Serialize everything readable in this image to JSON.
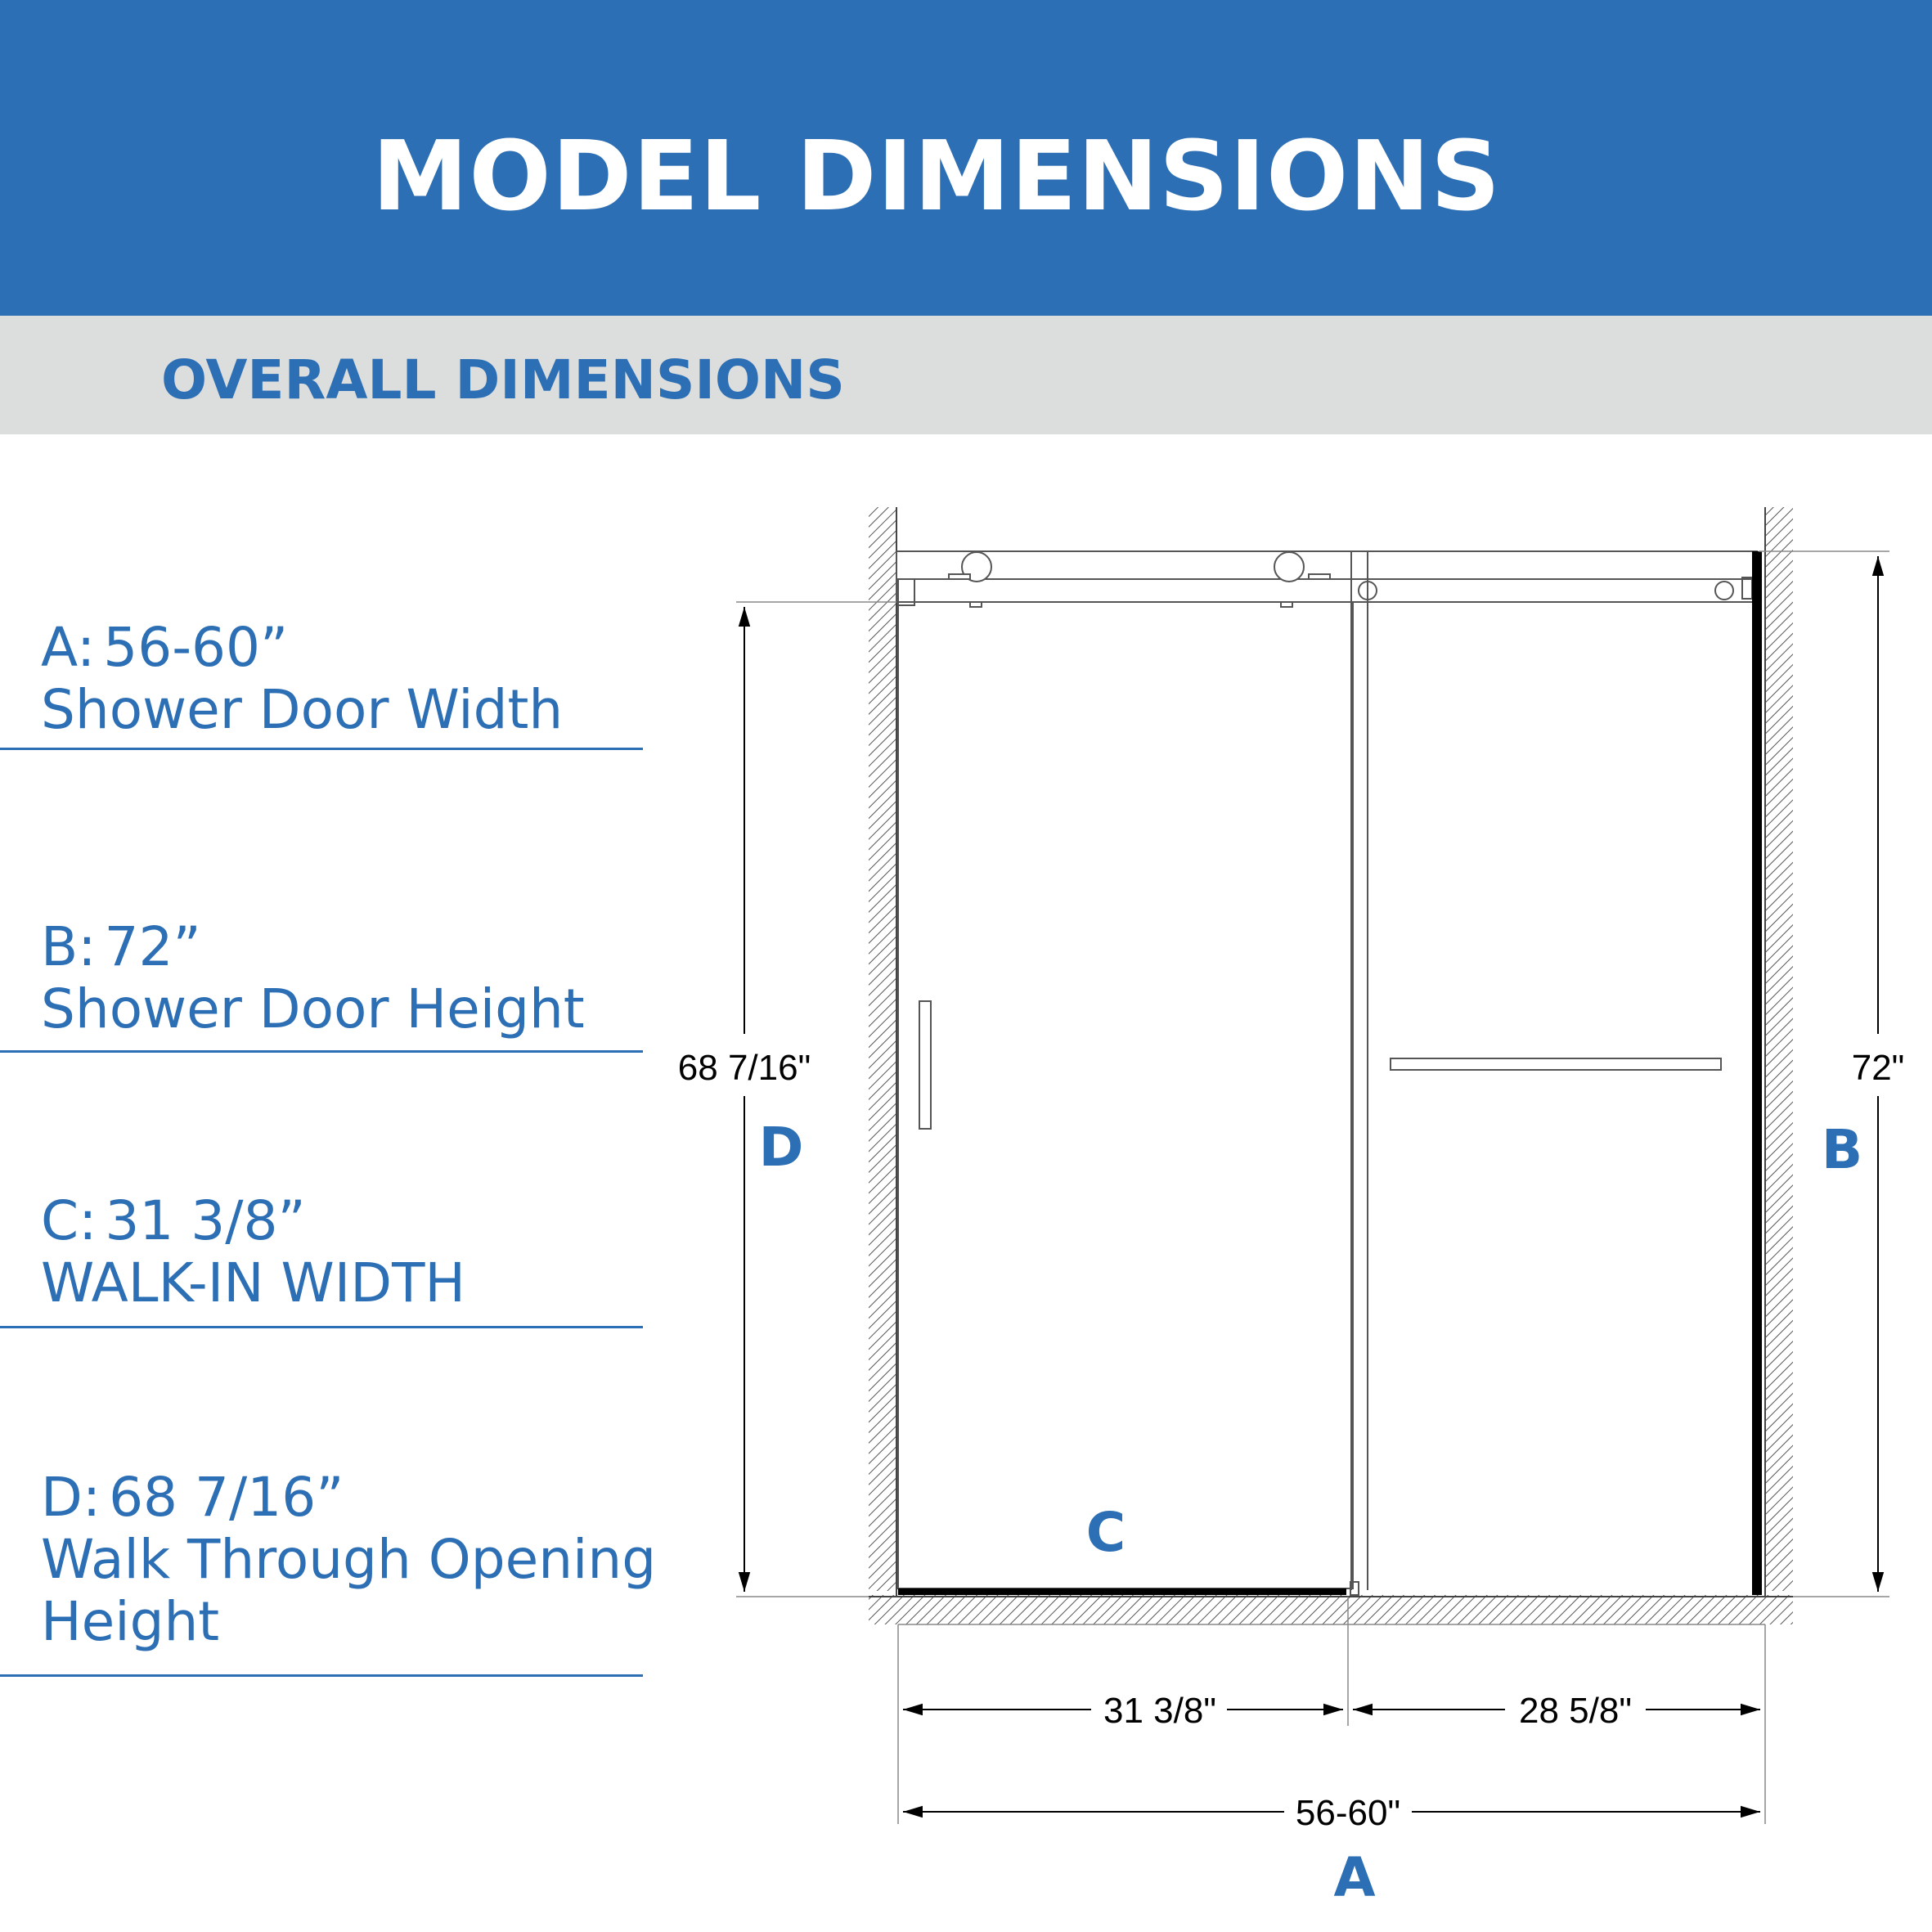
{
  "header": {
    "title": "MODEL DIMENSIONS"
  },
  "subheader": {
    "title": "OVERALL DIMENSIONS"
  },
  "specs": [
    {
      "label": "A:",
      "value": "56-60”",
      "lines": [
        "Shower Door Width"
      ]
    },
    {
      "label": "B:",
      "value": "72”",
      "lines": [
        "Shower Door Height"
      ]
    },
    {
      "label": "C:",
      "value": "31 3/8”",
      "lines": [
        "WALK-IN WIDTH"
      ]
    },
    {
      "label": "D:",
      "value": "68 7/16”",
      "lines": [
        "Walk Through Opening",
        "Height"
      ]
    }
  ],
  "diagram": {
    "dim_d": "68 7/16\"",
    "dim_b": "72\"",
    "dim_c": "31 3/8\"",
    "dim_fixed": "28 5/8\"",
    "dim_a": "56-60\"",
    "letter_a": "A",
    "letter_b": "B",
    "letter_c": "C",
    "letter_d": "D"
  },
  "colors": {
    "brand_blue": "#2d6fb5",
    "band_gray": "#dcdddd"
  }
}
